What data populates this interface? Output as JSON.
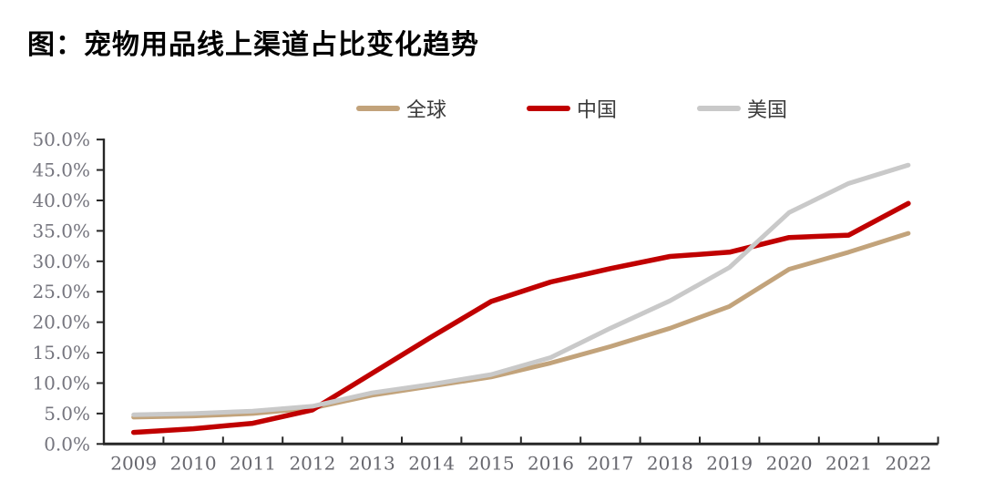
{
  "title": "图：宠物用品线上渠道占比变化趋势",
  "chart_data": {
    "type": "line",
    "title": "图：宠物用品线上渠道占比变化趋势",
    "categories": [
      "2009",
      "2010",
      "2011",
      "2012",
      "2013",
      "2014",
      "2015",
      "2016",
      "2017",
      "2018",
      "2019",
      "2020",
      "2021",
      "2022"
    ],
    "series": [
      {
        "name": "全球",
        "color": "#C2A37B",
        "values": [
          4.4,
          4.6,
          5.0,
          5.9,
          8.0,
          9.5,
          11.0,
          13.3,
          16.0,
          19.0,
          22.6,
          28.7,
          31.5,
          34.6
        ]
      },
      {
        "name": "中国",
        "color": "#C00000",
        "values": [
          1.9,
          2.5,
          3.4,
          5.6,
          11.6,
          17.6,
          23.4,
          26.6,
          28.8,
          30.8,
          31.5,
          33.9,
          34.3,
          39.5
        ]
      },
      {
        "name": "美国",
        "color": "#C9C9C9",
        "values": [
          4.8,
          5.0,
          5.4,
          6.2,
          8.4,
          9.8,
          11.4,
          14.2,
          19.0,
          23.5,
          29.0,
          38.0,
          42.8,
          45.8
        ]
      }
    ],
    "xlabel": "",
    "ylabel": "",
    "ylim": [
      0,
      50
    ],
    "ytick_step": 5,
    "ytick_labels": [
      "0.0%",
      "5.0%",
      "10.0%",
      "15.0%",
      "20.0%",
      "25.0%",
      "30.0%",
      "35.0%",
      "40.0%",
      "45.0%",
      "50.0%"
    ],
    "ytick_format": "percent_1dp",
    "legend_position": "top",
    "legend_entries": [
      "全球",
      "中国",
      "美国"
    ],
    "grid": false,
    "axis_color": "#262626",
    "ytick_label_color": "#75757e",
    "xtick_label_color": "#67676e"
  }
}
